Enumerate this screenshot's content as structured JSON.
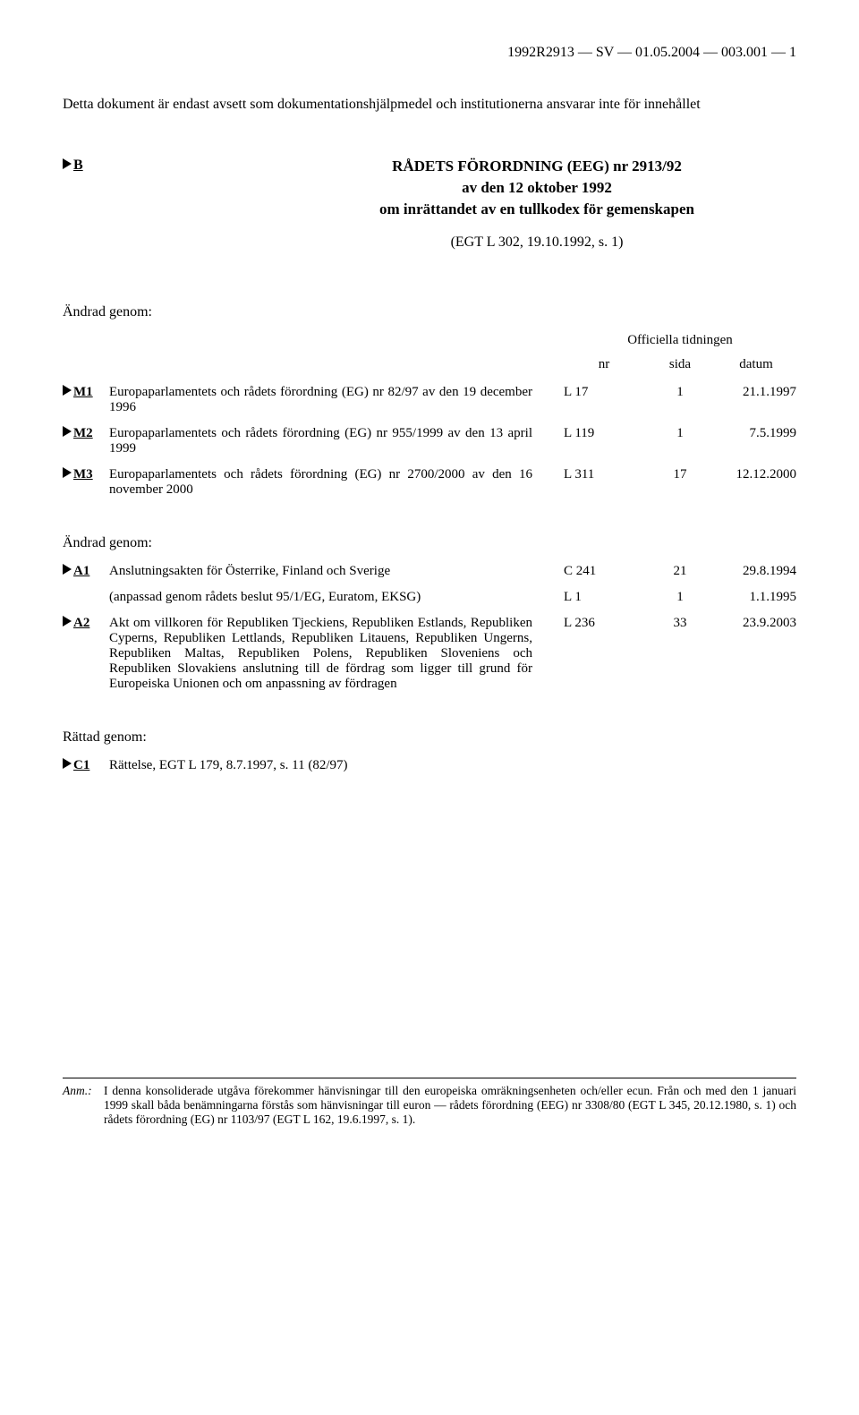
{
  "header": "1992R2913 — SV — 01.05.2004 — 003.001 — 1",
  "intro": "Detta dokument är endast avsett som dokumentationshjälpmedel och institutionerna ansvarar inte för innehållet",
  "marker_b": "B",
  "title": {
    "main": "RÅDETS FÖRORDNING (EEG) nr 2913/92",
    "sub1": "av den 12 oktober 1992",
    "sub2": "om inrättandet av en tullkodex för gemenskapen",
    "ref": "(EGT L 302, 19.10.1992, s. 1)"
  },
  "amended_by_label": "Ändrad genom:",
  "oj_label": "Officiella tidningen",
  "col_nr": "nr",
  "col_sida": "sida",
  "col_datum": "datum",
  "m_rows": [
    {
      "code": "M1",
      "desc": "Europaparlamentets och rådets förordning (EG) nr 82/97 av den 19 december 1996",
      "nr": "L 17",
      "sida": "1",
      "datum": "21.1.1997"
    },
    {
      "code": "M2",
      "desc": "Europaparlamentets och rådets förordning (EG) nr 955/1999 av den 13 april 1999",
      "nr": "L 119",
      "sida": "1",
      "datum": "7.5.1999"
    },
    {
      "code": "M3",
      "desc": "Europaparlamentets och rådets förordning (EG) nr 2700/2000 av den 16 november 2000",
      "nr": "L 311",
      "sida": "17",
      "datum": "12.12.2000"
    }
  ],
  "a_rows": [
    {
      "code": "A1",
      "desc": "Anslutningsakten för Österrike, Finland och Sverige",
      "nr": "C 241",
      "sida": "21",
      "datum": "29.8.1994"
    },
    {
      "code": "",
      "desc": "(anpassad genom rådets beslut 95/1/EG, Euratom, EKSG)",
      "nr": "L 1",
      "sida": "1",
      "datum": "1.1.1995"
    },
    {
      "code": "A2",
      "desc": "Akt om villkoren för Republiken Tjeckiens, Republiken Estlands, Republiken Cyperns, Republiken Lettlands, Republiken Litauens, Republiken Ungerns, Republiken Maltas, Republiken Polens, Republiken Sloveniens och Republiken Slovakiens anslutning till de fördrag som ligger till grund för Europeiska Unionen och om anpassning av fördragen",
      "nr": "L 236",
      "sida": "33",
      "datum": "23.9.2003"
    }
  ],
  "corrected_by_label": "Rättad genom:",
  "c_rows": [
    {
      "code": "C1",
      "desc": "Rättelse, EGT L 179, 8.7.1997, s. 11 (82/97)"
    }
  ],
  "footnote": {
    "label": "Anm.:",
    "text": "I denna konsoliderade utgåva förekommer hänvisningar till den europeiska omräkningsenheten och/eller ecun. Från och med den 1 januari 1999 skall båda benämningarna förstås som hänvisningar till euron — rådets förordning (EEG) nr 3308/80 (EGT L 345, 20.12.1980, s. 1) och rådets förordning (EG) nr 1103/97 (EGT L 162, 19.6.1997, s. 1)."
  }
}
